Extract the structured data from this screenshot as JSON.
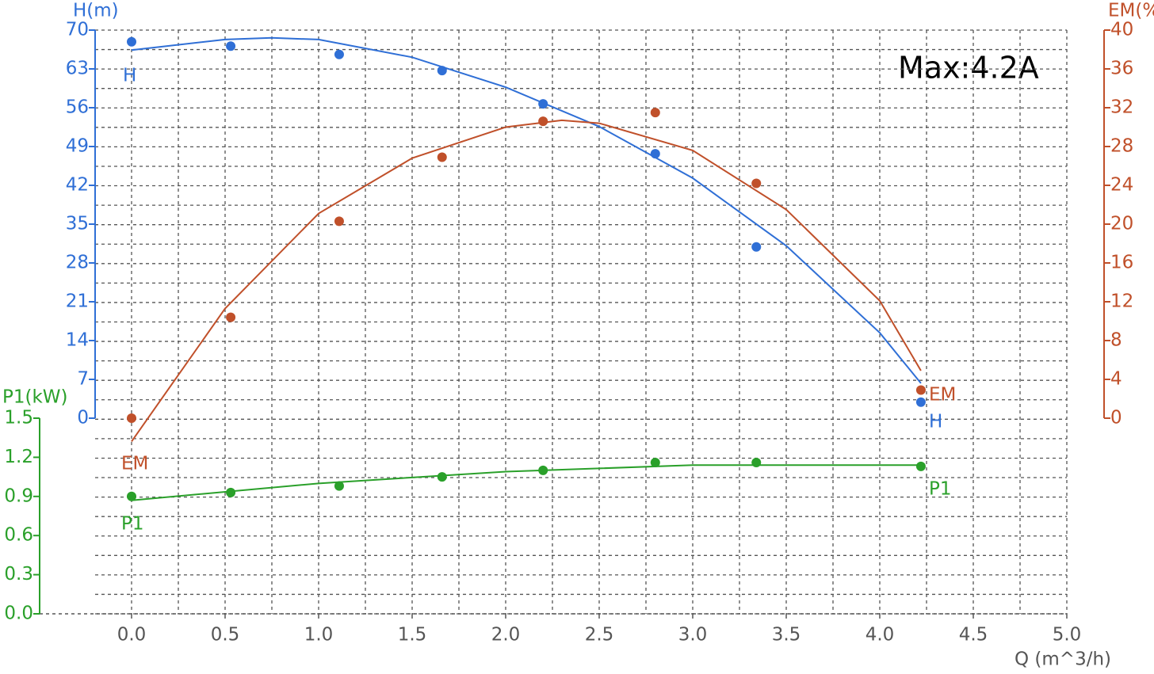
{
  "chart_data": {
    "type": "line",
    "annotation": "Max:4.2A",
    "x_label": "Q (m^3/h)",
    "y_label": "H(m)",
    "y2_label": "EM(%)",
    "y3_label": "P1(kW)",
    "grid": true,
    "xlim": [
      0,
      5
    ],
    "xticks": [
      {
        "value": 0,
        "label": "0.0"
      },
      {
        "value": 0.5,
        "label": "0.5"
      },
      {
        "value": 1,
        "label": "1.0"
      },
      {
        "value": 1.5,
        "label": "1.5"
      },
      {
        "value": 2,
        "label": "2.0"
      },
      {
        "value": 2.5,
        "label": "2.5"
      },
      {
        "value": 3,
        "label": "3.0"
      },
      {
        "value": 3.5,
        "label": "3.5"
      },
      {
        "value": 4,
        "label": "4.0"
      },
      {
        "value": 4.5,
        "label": "4.5"
      },
      {
        "value": 5,
        "label": "5.0"
      }
    ],
    "ylim": [
      0,
      70
    ],
    "yticks": [
      0,
      7,
      14,
      21,
      28,
      35,
      42,
      49,
      56,
      63,
      70
    ],
    "y2lim": [
      0,
      40
    ],
    "y2ticks": [
      0,
      4,
      8,
      12,
      16,
      20,
      24,
      28,
      32,
      36,
      40
    ],
    "y3lim": [
      0,
      1.5
    ],
    "y3ticks": [
      {
        "value": 0,
        "label": "0.0"
      },
      {
        "value": 0.3,
        "label": "0.3"
      },
      {
        "value": 0.6,
        "label": "0.6"
      },
      {
        "value": 0.9,
        "label": "0.9"
      },
      {
        "value": 1.2,
        "label": "1.2"
      },
      {
        "value": 1.5,
        "label": "1.5"
      }
    ],
    "series": [
      {
        "name": "H",
        "color": "#2f6fd6",
        "axis": "y",
        "x": [
          0,
          0.53,
          1.11,
          1.66,
          2.2,
          2.8,
          3.34,
          4.22
        ],
        "values": [
          67.9,
          67.1,
          65.6,
          62.7,
          56.7,
          47.7,
          30.9,
          2.9
        ],
        "fit": {
          "x": [
            0,
            0.5,
            0.75,
            1,
            1.5,
            2,
            2.5,
            3,
            3.5,
            4,
            4.22
          ],
          "values": [
            66.4,
            68.3,
            68.6,
            68.3,
            65.1,
            59.7,
            52.6,
            43.3,
            31.1,
            15.4,
            6.3
          ]
        }
      },
      {
        "name": "EM",
        "color": "#c0502a",
        "axis": "y2",
        "x": [
          0,
          0.53,
          1.11,
          1.66,
          2.2,
          2.8,
          3.34,
          4.22
        ],
        "values": [
          0,
          10.4,
          20.3,
          26.9,
          30.6,
          31.5,
          24.2,
          2.9
        ],
        "fit": {
          "x": [
            0,
            0.5,
            1,
            1.5,
            2,
            2.3,
            2.5,
            3,
            3.5,
            4,
            4.22
          ],
          "values": [
            -2.4,
            11.3,
            21.1,
            26.8,
            30.0,
            30.7,
            30.4,
            27.6,
            21.5,
            12.1,
            4.9
          ]
        }
      },
      {
        "name": "P1",
        "color": "#2aa02a",
        "axis": "y3",
        "x": [
          0,
          0.53,
          1.11,
          1.66,
          2.2,
          2.8,
          3.34,
          4.22
        ],
        "values": [
          0.9,
          0.93,
          0.98,
          1.05,
          1.1,
          1.16,
          1.16,
          1.13
        ],
        "fit": {
          "x": [
            0,
            1,
            2,
            3,
            4.22
          ],
          "values": [
            0.87,
            1.0,
            1.09,
            1.14,
            1.14
          ]
        }
      }
    ]
  }
}
